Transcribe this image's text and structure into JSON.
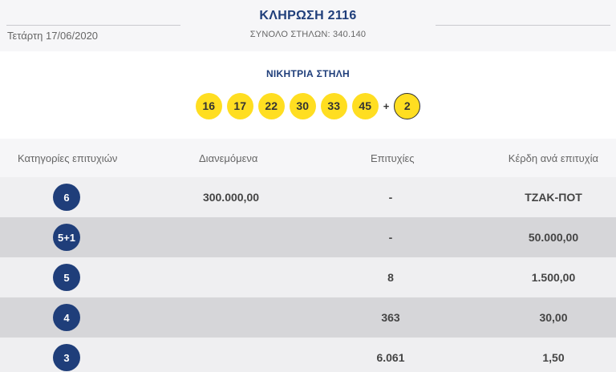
{
  "header": {
    "draw_title": "ΚΛΗΡΩΣΗ 2116",
    "date": "Τετάρτη 17/06/2020",
    "total_columns": "ΣΥΝΟΛΟ ΣΤΗΛΩΝ: 340.140"
  },
  "winning": {
    "label": "ΝΙΚΗΤΡΙΑ ΣΤΗΛΗ",
    "numbers": [
      "16",
      "17",
      "22",
      "30",
      "33",
      "45"
    ],
    "plus": "+",
    "bonus": "2"
  },
  "table": {
    "headers": [
      "Κατηγορίες επιτυχιών",
      "Διανεμόμενα",
      "Επιτυχίες",
      "Κέρδη ανά επιτυχία"
    ],
    "rows": [
      {
        "category": "6",
        "distributed": "300.000,00",
        "winners": "-",
        "prize": "ΤΖΑΚ-ΠΟΤ"
      },
      {
        "category": "5+1",
        "distributed": "",
        "winners": "-",
        "prize": "50.000,00"
      },
      {
        "category": "5",
        "distributed": "",
        "winners": "8",
        "prize": "1.500,00"
      },
      {
        "category": "4",
        "distributed": "",
        "winners": "363",
        "prize": "30,00"
      },
      {
        "category": "3",
        "distributed": "",
        "winners": "6.061",
        "prize": "1,50"
      }
    ]
  },
  "colors": {
    "accent": "#1f3e7a",
    "ball": "#ffde21"
  }
}
